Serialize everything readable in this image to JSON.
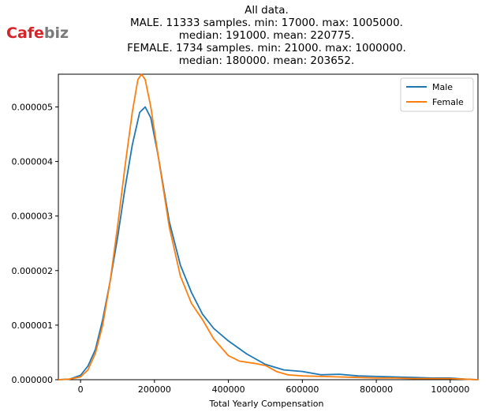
{
  "logo": {
    "text_main": "Cafe",
    "text_tail": "biz"
  },
  "chart_data": {
    "type": "line",
    "title_lines": [
      "All data.",
      "MALE. 11333 samples. min: 17000. max: 1005000.",
      "median: 191000. mean: 220775.",
      "FEMALE. 1734 samples. min: 21000. max: 1000000.",
      "median: 180000. mean: 203652."
    ],
    "xlabel": "Total Yearly Compensation",
    "ylabel": "",
    "xlim": [
      -60000,
      1075000
    ],
    "ylim": [
      0,
      5.6e-06
    ],
    "x_ticks": [
      0,
      200000,
      400000,
      600000,
      800000,
      1000000
    ],
    "x_tick_labels": [
      "0",
      "200000",
      "400000",
      "600000",
      "800000",
      "1000000"
    ],
    "y_ticks": [
      0,
      1e-06,
      2e-06,
      3e-06,
      4e-06,
      5e-06
    ],
    "y_tick_labels": [
      "0.000000",
      "0.000001",
      "0.000002",
      "0.000003",
      "0.000004",
      "0.000005"
    ],
    "grid": false,
    "legend_position": "top-right",
    "series": [
      {
        "name": "Male",
        "color": "#1f77b4",
        "x": [
          -60000,
          -30000,
          0,
          20000,
          40000,
          60000,
          80000,
          100000,
          120000,
          140000,
          160000,
          175000,
          190000,
          210000,
          240000,
          270000,
          300000,
          330000,
          360000,
          400000,
          450000,
          500000,
          550000,
          600000,
          650000,
          700000,
          750000,
          800000,
          850000,
          900000,
          950000,
          1000000,
          1040000,
          1075000
        ],
        "y": [
          0,
          1e-08,
          8e-08,
          2.5e-07,
          5.5e-07,
          1.1e-06,
          1.8e-06,
          2.6e-06,
          3.5e-06,
          4.3e-06,
          4.9e-06,
          5e-06,
          4.8e-06,
          4.1e-06,
          2.9e-06,
          2.1e-06,
          1.6e-06,
          1.2e-06,
          9.4e-07,
          7.1e-07,
          4.7e-07,
          2.8e-07,
          1.8e-07,
          1.5e-07,
          9e-08,
          1e-07,
          7e-08,
          6e-08,
          5e-08,
          4e-08,
          3e-08,
          3e-08,
          1e-08,
          0
        ]
      },
      {
        "name": "Female",
        "color": "#ff7f0e",
        "x": [
          -60000,
          -30000,
          0,
          20000,
          40000,
          60000,
          80000,
          100000,
          120000,
          140000,
          155000,
          165000,
          175000,
          190000,
          210000,
          240000,
          270000,
          300000,
          330000,
          360000,
          400000,
          430000,
          470000,
          500000,
          530000,
          560000,
          600000,
          650000,
          700000,
          750000,
          800000,
          850000,
          900000,
          950000,
          1000000,
          1040000,
          1075000
        ],
        "y": [
          0,
          1e-08,
          5e-08,
          1.8e-07,
          4.8e-07,
          1e-06,
          1.8e-06,
          2.8e-06,
          3.9e-06,
          4.9e-06,
          5.5e-06,
          5.6e-06,
          5.5e-06,
          5e-06,
          4.1e-06,
          2.8e-06,
          1.9e-06,
          1.4e-06,
          1.1e-06,
          7.5e-07,
          4.4e-07,
          3.4e-07,
          3e-07,
          2.6e-07,
          1.5e-07,
          9e-08,
          7e-08,
          6e-08,
          5e-08,
          4e-08,
          3e-08,
          3e-08,
          2e-08,
          2e-08,
          2e-08,
          1e-08,
          0
        ]
      }
    ]
  }
}
